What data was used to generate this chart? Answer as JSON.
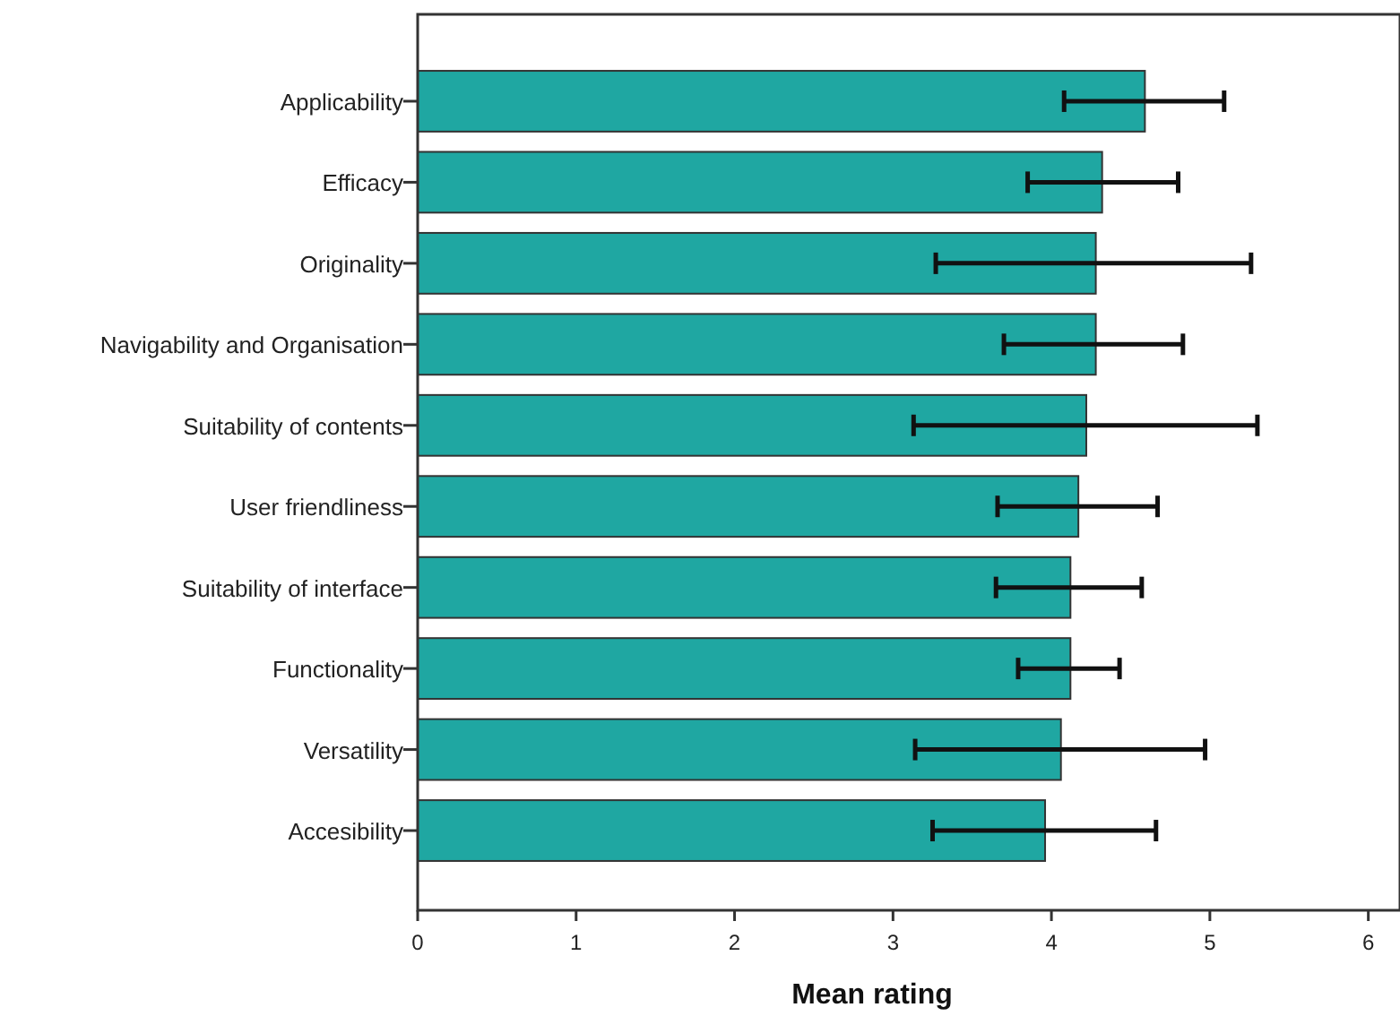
{
  "chart_data": {
    "type": "bar",
    "orientation": "horizontal",
    "xlabel": "Mean rating",
    "categories": [
      "Applicability",
      "Efficacy",
      "Originality",
      "Navigability and Organisation",
      "Suitability of contents",
      "User friendliness",
      "Suitability of interface",
      "Functionality",
      "Versatility",
      "Accesibility"
    ],
    "values": [
      4.59,
      4.32,
      4.28,
      4.28,
      4.22,
      4.17,
      4.12,
      4.12,
      4.06,
      3.96
    ],
    "errors": [
      [
        4.08,
        5.09
      ],
      [
        3.85,
        4.8
      ],
      [
        3.27,
        5.26
      ],
      [
        3.7,
        4.83
      ],
      [
        3.13,
        5.3
      ],
      [
        3.66,
        4.67
      ],
      [
        3.65,
        4.57
      ],
      [
        3.79,
        4.43
      ],
      [
        3.14,
        4.97
      ],
      [
        3.25,
        4.66
      ]
    ],
    "color": "#1fa7a2",
    "xlim": [
      0,
      6.2
    ],
    "xticks": [
      0,
      1,
      2,
      3,
      4,
      5,
      6
    ],
    "grid": false
  }
}
